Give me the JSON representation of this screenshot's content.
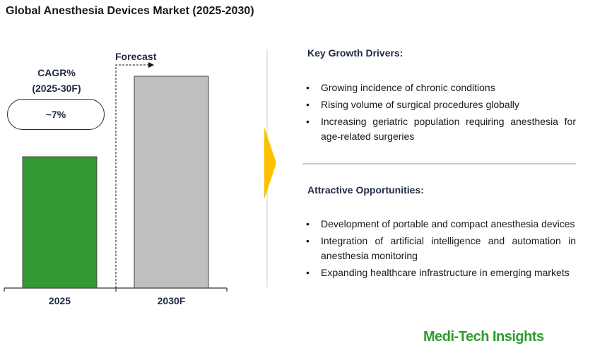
{
  "title": "Global Anesthesia Devices Market (2025-2030)",
  "cagr": {
    "label_line1": "CAGR%",
    "label_line2": "(2025-30F)",
    "value": "~7%"
  },
  "forecast_label": "Forecast",
  "chart_data": {
    "type": "bar",
    "categories": [
      "2025",
      "2030F"
    ],
    "values": [
      62,
      100
    ],
    "colors": [
      "#339933",
      "#bfbfbf"
    ],
    "ylim": [
      0,
      100
    ],
    "grid": false,
    "title": "",
    "xlabel": "",
    "ylabel": ""
  },
  "drivers": {
    "heading": "Key Growth Drivers:",
    "items": [
      "Growing incidence of chronic conditions",
      "Rising volume of surgical procedures globally",
      "Increasing geriatric population requiring anesthesia for age-related surgeries"
    ]
  },
  "opportunities": {
    "heading": "Attractive Opportunities:",
    "items": [
      "Development of portable and compact anesthesia devices",
      "Integration of artificial intelligence and automation in anesthesia monitoring",
      "Expanding healthcare infrastructure in emerging markets"
    ]
  },
  "logo": "Medi-Tech Insights",
  "accent_color": "#ffc000"
}
